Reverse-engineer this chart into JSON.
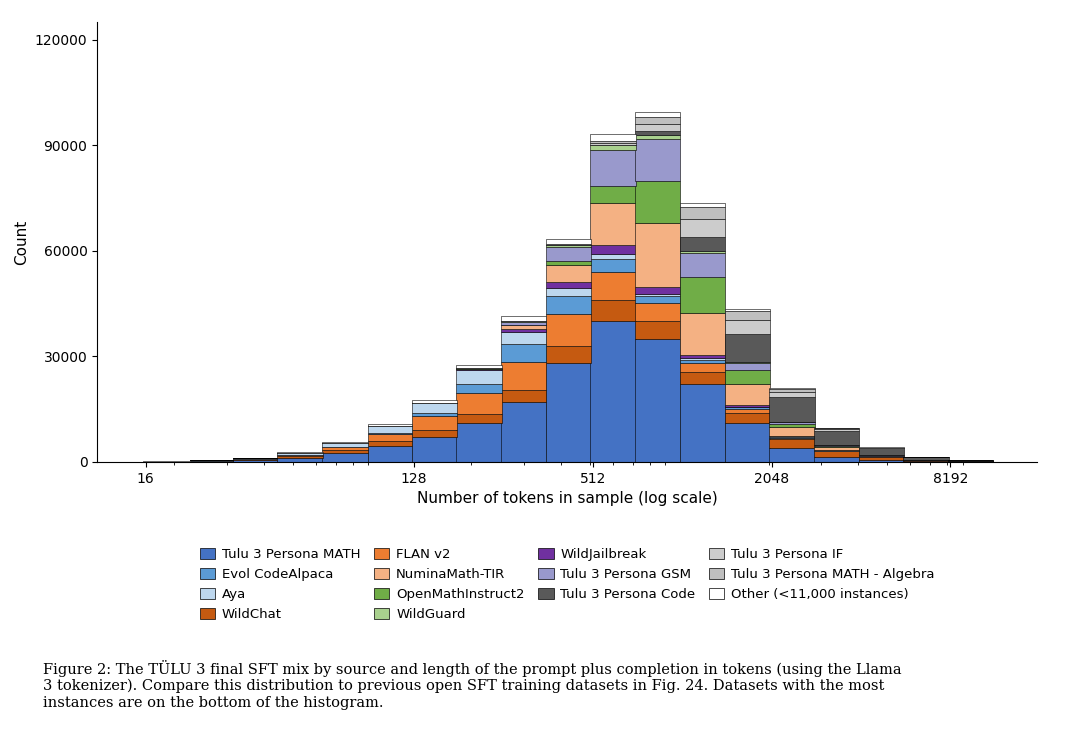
{
  "xlabel": "Number of tokens in sample (log scale)",
  "ylabel": "Count",
  "ylim": [
    0,
    125000
  ],
  "yticks": [
    0,
    30000,
    60000,
    90000,
    120000
  ],
  "xtick_labels": [
    "16",
    "128",
    "512",
    "2048",
    "8192"
  ],
  "xtick_positions": [
    16,
    128,
    512,
    2048,
    8192
  ],
  "bin_edges": [
    11,
    16,
    23,
    32,
    45,
    64,
    91,
    128,
    181,
    256,
    362,
    512,
    724,
    1024,
    1448,
    2048,
    2896,
    4096,
    5793,
    8192,
    11585
  ],
  "stack_order": [
    "Tulu 3 Persona MATH",
    "WildChat",
    "FLAN v2",
    "Evol CodeAlpaca",
    "Aya",
    "WildJailbreak",
    "NuminaMath-TIR",
    "OpenMathInstruct2",
    "Tulu 3 Persona GSM",
    "WildGuard",
    "Tulu 3 Persona Code",
    "Tulu 3 Persona IF",
    "Tulu 3 Persona MATH - Algebra",
    "Other (<11,000 instances)"
  ],
  "datasets": {
    "Tulu 3 Persona MATH": {
      "color": "#4472C4",
      "values": [
        0,
        50,
        200,
        500,
        1200,
        2500,
        4500,
        7000,
        11000,
        17000,
        28000,
        40000,
        35000,
        22000,
        11000,
        4000,
        1500,
        500,
        150,
        30
      ]
    },
    "WildChat": {
      "color": "#C55A11",
      "values": [
        0,
        10,
        50,
        150,
        400,
        900,
        1500,
        2000,
        2500,
        3500,
        5000,
        6000,
        5000,
        3500,
        3000,
        2500,
        1500,
        800,
        300,
        100
      ]
    },
    "FLAN v2": {
      "color": "#ED7D31",
      "values": [
        0,
        0,
        30,
        100,
        300,
        800,
        2000,
        4000,
        6000,
        8000,
        9000,
        8000,
        5000,
        2500,
        1000,
        400,
        100,
        30,
        10,
        5
      ]
    },
    "Evol CodeAlpaca": {
      "color": "#5B9BD5",
      "values": [
        0,
        0,
        0,
        0,
        0,
        50,
        200,
        800,
        2500,
        5000,
        5000,
        3500,
        2000,
        1000,
        500,
        200,
        80,
        30,
        10,
        5
      ]
    },
    "Aya": {
      "color": "#BDD7EE",
      "values": [
        0,
        20,
        100,
        300,
        600,
        1200,
        2000,
        3000,
        4000,
        3500,
        2500,
        1500,
        800,
        400,
        200,
        100,
        50,
        20,
        5,
        2
      ]
    },
    "WildJailbreak": {
      "color": "#7030A0",
      "values": [
        0,
        0,
        0,
        0,
        0,
        0,
        0,
        0,
        300,
        800,
        1500,
        2500,
        2000,
        1000,
        400,
        100,
        30,
        10,
        5,
        0
      ]
    },
    "NuminaMath-TIR": {
      "color": "#F4B183",
      "values": [
        0,
        0,
        0,
        0,
        0,
        0,
        0,
        0,
        0,
        1000,
        5000,
        12000,
        18000,
        12000,
        6000,
        2500,
        1000,
        300,
        100,
        30
      ]
    },
    "OpenMathInstruct2": {
      "color": "#70AD47",
      "values": [
        0,
        0,
        0,
        0,
        0,
        0,
        0,
        0,
        0,
        0,
        1000,
        5000,
        12000,
        10000,
        4000,
        1000,
        300,
        80,
        20,
        5
      ]
    },
    "Tulu 3 Persona GSM": {
      "color": "#9999CC",
      "values": [
        0,
        0,
        0,
        0,
        0,
        0,
        0,
        0,
        200,
        1000,
        4000,
        10000,
        12000,
        7000,
        2000,
        500,
        150,
        40,
        10,
        2
      ]
    },
    "WildGuard": {
      "color": "#A9D18E",
      "values": [
        0,
        0,
        0,
        0,
        0,
        0,
        0,
        0,
        100,
        300,
        700,
        1500,
        1200,
        600,
        250,
        100,
        30,
        10,
        3,
        0
      ]
    },
    "Tulu 3 Persona Code": {
      "color": "#595959",
      "values": [
        0,
        0,
        0,
        0,
        0,
        0,
        0,
        0,
        0,
        0,
        0,
        0,
        1000,
        4000,
        8000,
        7000,
        4000,
        2000,
        700,
        200
      ]
    },
    "Tulu 3 Persona IF": {
      "color": "#CCCCCC",
      "values": [
        0,
        0,
        0,
        0,
        0,
        0,
        0,
        0,
        0,
        0,
        0,
        500,
        2000,
        5000,
        4000,
        1500,
        500,
        150,
        40,
        10
      ]
    },
    "Tulu 3 Persona MATH - Algebra": {
      "color": "#BFBFBF",
      "values": [
        0,
        0,
        0,
        0,
        0,
        0,
        0,
        0,
        0,
        0,
        200,
        800,
        2000,
        3500,
        2500,
        800,
        250,
        80,
        20,
        5
      ]
    },
    "Other (<11,000 instances)": {
      "color": "#FFFFFF",
      "values": [
        0,
        10,
        30,
        80,
        150,
        300,
        500,
        700,
        1000,
        1200,
        1500,
        2000,
        1500,
        1000,
        500,
        200,
        80,
        30,
        10,
        5
      ]
    }
  },
  "legend_order": [
    "Tulu 3 Persona MATH",
    "Evol CodeAlpaca",
    "Aya",
    "WildChat",
    "FLAN v2",
    "NuminaMath-TIR",
    "OpenMathInstruct2",
    "WildGuard",
    "WildJailbreak",
    "Tulu 3 Persona GSM",
    "Tulu 3 Persona Code",
    "Tulu 3 Persona IF",
    "Tulu 3 Persona MATH - Algebra",
    "Other (<11,000 instances)"
  ],
  "figure_caption": "Figure 2: The TÜLU 3 final SFT mix by source and length of the prompt plus completion in tokens (using the Llama\n3 tokenizer). Compare this distribution to previous open SFT training datasets in Fig. 24. Datasets with the most\ninstances are on the bottom of the histogram."
}
